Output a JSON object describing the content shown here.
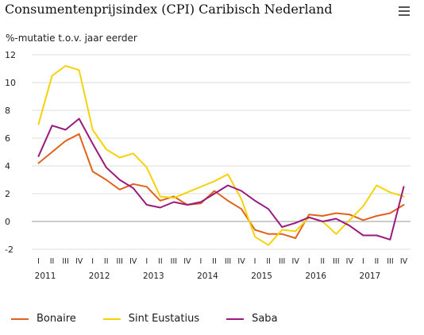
{
  "header": {
    "title": "Consumentenprijsindex (CPI) Caribisch Nederland",
    "ylabel": "%-mutatie t.o.v. jaar eerder",
    "menu_icon": "hamburger-menu-icon"
  },
  "chart_data": {
    "type": "line",
    "title": "Consumentenprijsindex (CPI) Caribisch Nederland",
    "ylabel": "%-mutatie t.o.v. jaar eerder",
    "xlabel": "",
    "ylim": [
      -2,
      12
    ],
    "yticks": [
      -2,
      0,
      2,
      4,
      6,
      8,
      10,
      12
    ],
    "grid": true,
    "legend_position": "bottom-left",
    "categories": [
      "I",
      "II",
      "III",
      "IV",
      "I",
      "II",
      "III",
      "IV",
      "I",
      "II",
      "III",
      "IV",
      "I",
      "II",
      "III",
      "IV",
      "I",
      "II",
      "III",
      "IV",
      "I",
      "II",
      "III",
      "IV",
      "I",
      "II",
      "III",
      "IV"
    ],
    "years": [
      "2011",
      "2012",
      "2013",
      "2014",
      "2015",
      "2016",
      "2017"
    ],
    "series": [
      {
        "name": "Bonaire",
        "color": "#e0621c",
        "values": [
          4.2,
          5.0,
          5.8,
          6.3,
          3.6,
          3.0,
          2.3,
          2.7,
          2.5,
          1.5,
          1.8,
          1.2,
          1.3,
          2.2,
          1.5,
          0.9,
          -0.6,
          -0.9,
          -0.9,
          -1.2,
          0.5,
          0.4,
          0.6,
          0.5,
          0.1,
          0.4,
          0.6,
          1.2
        ]
      },
      {
        "name": "Sint Eustatius",
        "color": "#f5d20a",
        "values": [
          7.0,
          10.5,
          11.2,
          10.9,
          6.6,
          5.2,
          4.6,
          4.9,
          3.9,
          1.8,
          1.7,
          2.1,
          2.5,
          2.9,
          3.4,
          1.6,
          -1.1,
          -1.7,
          -0.6,
          -0.7,
          0.3,
          0.0,
          -0.9,
          0.1,
          1.1,
          2.6,
          2.1,
          1.8
        ]
      },
      {
        "name": "Saba",
        "color": "#9b1a7e",
        "values": [
          4.7,
          6.9,
          6.6,
          7.4,
          5.6,
          3.9,
          3.0,
          2.4,
          1.2,
          1.0,
          1.4,
          1.2,
          1.4,
          2.0,
          2.6,
          2.2,
          1.5,
          0.9,
          -0.4,
          -0.1,
          0.3,
          0.0,
          0.2,
          -0.3,
          -1.0,
          -1.0,
          -1.3,
          2.5
        ]
      }
    ]
  }
}
